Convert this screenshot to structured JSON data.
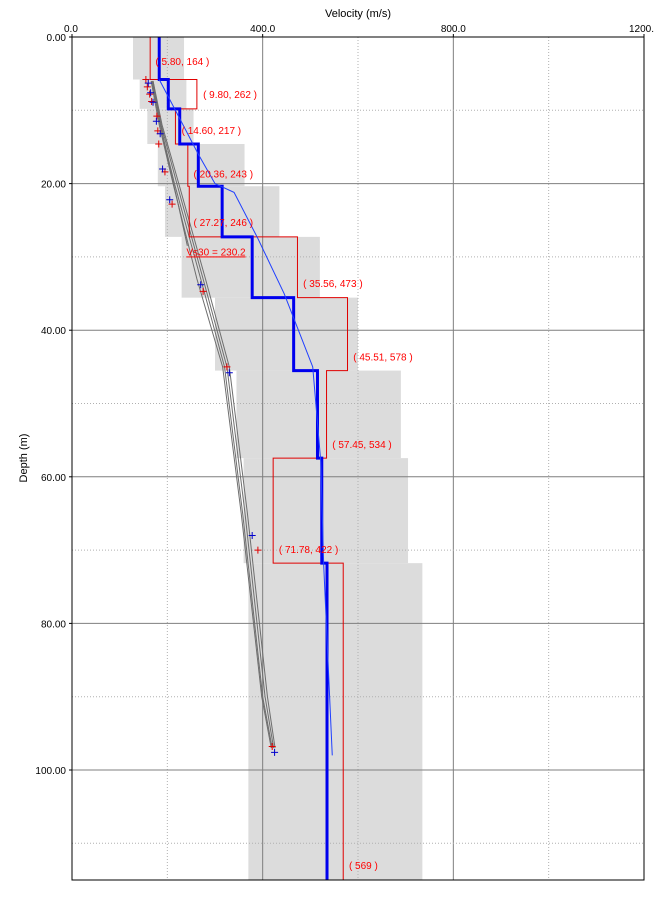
{
  "chart_data": {
    "type": "line",
    "title": "",
    "xlabel": "Velocity (m/s)",
    "ylabel": "Depth (m)",
    "xlim": [
      0,
      1200
    ],
    "ylim": [
      0,
      115
    ],
    "x_ticks": [
      "0.0",
      "400.0",
      "800.0",
      "1200."
    ],
    "y_ticks": [
      "0.00",
      "20.00",
      "40.00",
      "60.00",
      "80.00",
      "100.00"
    ],
    "x_tick_values": [
      0,
      400,
      800,
      1200
    ],
    "y_tick_values": [
      0,
      20,
      40,
      60,
      80,
      100
    ],
    "uncertainty_bands": [
      {
        "top": 0,
        "bottom": 5.8,
        "vmin": 128,
        "vmax": 235
      },
      {
        "top": 5.8,
        "bottom": 9.8,
        "vmin": 142,
        "vmax": 240
      },
      {
        "top": 9.8,
        "bottom": 14.6,
        "vmin": 158,
        "vmax": 255
      },
      {
        "top": 14.6,
        "bottom": 20.36,
        "vmin": 180,
        "vmax": 362
      },
      {
        "top": 20.36,
        "bottom": 27.27,
        "vmin": 195,
        "vmax": 435
      },
      {
        "top": 27.27,
        "bottom": 35.56,
        "vmin": 230,
        "vmax": 520
      },
      {
        "top": 35.56,
        "bottom": 45.51,
        "vmin": 300,
        "vmax": 600
      },
      {
        "top": 45.51,
        "bottom": 57.45,
        "vmin": 345,
        "vmax": 690
      },
      {
        "top": 57.45,
        "bottom": 71.78,
        "vmin": 360,
        "vmax": 705
      },
      {
        "top": 71.78,
        "bottom": 115,
        "vmin": 370,
        "vmax": 735
      }
    ],
    "red_profile_layers": [
      {
        "top": 0,
        "bottom": 5.8,
        "velocity": 164
      },
      {
        "top": 5.8,
        "bottom": 9.8,
        "velocity": 262
      },
      {
        "top": 9.8,
        "bottom": 14.6,
        "velocity": 217
      },
      {
        "top": 14.6,
        "bottom": 20.36,
        "velocity": 243
      },
      {
        "top": 20.36,
        "bottom": 27.27,
        "velocity": 246
      },
      {
        "top": 27.27,
        "bottom": 35.56,
        "velocity": 473
      },
      {
        "top": 35.56,
        "bottom": 45.51,
        "velocity": 578
      },
      {
        "top": 45.51,
        "bottom": 57.45,
        "velocity": 534
      },
      {
        "top": 57.45,
        "bottom": 71.78,
        "velocity": 422
      },
      {
        "top": 71.78,
        "bottom": 115,
        "velocity": 569
      }
    ],
    "blue_profile_layers": [
      {
        "top": 0,
        "bottom": 5.8,
        "velocity": 183
      },
      {
        "top": 5.8,
        "bottom": 9.8,
        "velocity": 202
      },
      {
        "top": 9.8,
        "bottom": 14.6,
        "velocity": 226
      },
      {
        "top": 14.6,
        "bottom": 20.36,
        "velocity": 265
      },
      {
        "top": 20.36,
        "bottom": 27.27,
        "velocity": 315
      },
      {
        "top": 27.27,
        "bottom": 35.56,
        "velocity": 378
      },
      {
        "top": 35.56,
        "bottom": 45.51,
        "velocity": 465
      },
      {
        "top": 45.51,
        "bottom": 57.45,
        "velocity": 515
      },
      {
        "top": 57.45,
        "bottom": 71.78,
        "velocity": 524
      },
      {
        "top": 71.78,
        "bottom": 115,
        "velocity": 535
      }
    ],
    "thin_blue_curve": [
      {
        "v": 183,
        "d": 5.8
      },
      {
        "v": 225,
        "d": 11
      },
      {
        "v": 265,
        "d": 16
      },
      {
        "v": 300,
        "d": 20
      },
      {
        "v": 340,
        "d": 21.2
      },
      {
        "v": 390,
        "d": 27.5
      },
      {
        "v": 445,
        "d": 35
      },
      {
        "v": 505,
        "d": 45
      },
      {
        "v": 522,
        "d": 58
      },
      {
        "v": 528,
        "d": 72
      },
      {
        "v": 537,
        "d": 85
      },
      {
        "v": 546,
        "d": 98
      }
    ],
    "dispersion_curves": [
      {
        "name": "gray-1",
        "points": [
          {
            "v": 168,
            "d": 6
          },
          {
            "v": 185,
            "d": 12
          },
          {
            "v": 215,
            "d": 20
          },
          {
            "v": 270,
            "d": 33
          },
          {
            "v": 320,
            "d": 45
          },
          {
            "v": 358,
            "d": 65
          },
          {
            "v": 400,
            "d": 90
          },
          {
            "v": 420,
            "d": 97
          }
        ]
      },
      {
        "name": "gray-2",
        "points": [
          {
            "v": 168,
            "d": 6
          },
          {
            "v": 187,
            "d": 12
          },
          {
            "v": 220,
            "d": 20
          },
          {
            "v": 275,
            "d": 33
          },
          {
            "v": 325,
            "d": 45
          },
          {
            "v": 363,
            "d": 65
          },
          {
            "v": 405,
            "d": 90
          },
          {
            "v": 423,
            "d": 97
          }
        ]
      },
      {
        "name": "gray-3",
        "points": [
          {
            "v": 170,
            "d": 6
          },
          {
            "v": 189,
            "d": 12
          },
          {
            "v": 224,
            "d": 20
          },
          {
            "v": 280,
            "d": 33
          },
          {
            "v": 330,
            "d": 45
          },
          {
            "v": 368,
            "d": 65
          },
          {
            "v": 410,
            "d": 90
          },
          {
            "v": 426,
            "d": 97
          }
        ]
      },
      {
        "name": "gray-4",
        "points": [
          {
            "v": 166,
            "d": 6
          },
          {
            "v": 183,
            "d": 12
          },
          {
            "v": 212,
            "d": 20
          },
          {
            "v": 262,
            "d": 33
          },
          {
            "v": 316,
            "d": 45
          },
          {
            "v": 355,
            "d": 65
          },
          {
            "v": 398,
            "d": 90
          },
          {
            "v": 418,
            "d": 97
          }
        ]
      },
      {
        "name": "gray-short",
        "points": [
          {
            "v": 170,
            "d": 6
          },
          {
            "v": 195,
            "d": 15
          },
          {
            "v": 220,
            "d": 22
          },
          {
            "v": 242,
            "d": 28.5
          }
        ]
      }
    ],
    "red_markers": [
      {
        "v": 155,
        "d": 5.8
      },
      {
        "v": 158,
        "d": 6.8
      },
      {
        "v": 163,
        "d": 7.8
      },
      {
        "v": 167,
        "d": 8.8
      },
      {
        "v": 178,
        "d": 10.8
      },
      {
        "v": 180,
        "d": 12.8
      },
      {
        "v": 182,
        "d": 14.6
      },
      {
        "v": 195,
        "d": 18.4
      },
      {
        "v": 210,
        "d": 22.8
      },
      {
        "v": 275,
        "d": 34.7
      },
      {
        "v": 325,
        "d": 45
      },
      {
        "v": 390,
        "d": 70
      },
      {
        "v": 420,
        "d": 96.8
      }
    ],
    "blue_markers": [
      {
        "v": 160,
        "d": 6.3
      },
      {
        "v": 165,
        "d": 7.6
      },
      {
        "v": 170,
        "d": 8.9
      },
      {
        "v": 177,
        "d": 11.5
      },
      {
        "v": 185,
        "d": 13.2
      },
      {
        "v": 190,
        "d": 18
      },
      {
        "v": 205,
        "d": 22.2
      },
      {
        "v": 270,
        "d": 33.8
      },
      {
        "v": 330,
        "d": 45.8
      },
      {
        "v": 378,
        "d": 68
      },
      {
        "v": 425,
        "d": 97.6
      }
    ],
    "annotations": [
      {
        "text": "( 5.80, 164 )",
        "v": 175,
        "d": 3.8
      },
      {
        "text": "( 9.80, 262 )",
        "v": 275,
        "d": 8.3
      },
      {
        "text": "( 14.60, 217 )",
        "v": 230,
        "d": 13.2
      },
      {
        "text": "( 20.36, 243 )",
        "v": 255,
        "d": 19.2
      },
      {
        "text": "( 27.27, 246 )",
        "v": 255,
        "d": 25.8
      },
      {
        "text": "Vs30 = 230.2",
        "v": 240,
        "d": 29.8,
        "underline": true
      },
      {
        "text": "( 35.56, 473 )",
        "v": 485,
        "d": 34.1
      },
      {
        "text": "( 45.51, 578 )",
        "v": 590,
        "d": 44.1
      },
      {
        "text": "( 57.45, 534 )",
        "v": 546,
        "d": 56.1
      },
      {
        "text": "( 71.78, 422 )",
        "v": 434,
        "d": 70.4
      },
      {
        "text": "( 569 )",
        "v": 581,
        "d": 113.5
      }
    ]
  }
}
